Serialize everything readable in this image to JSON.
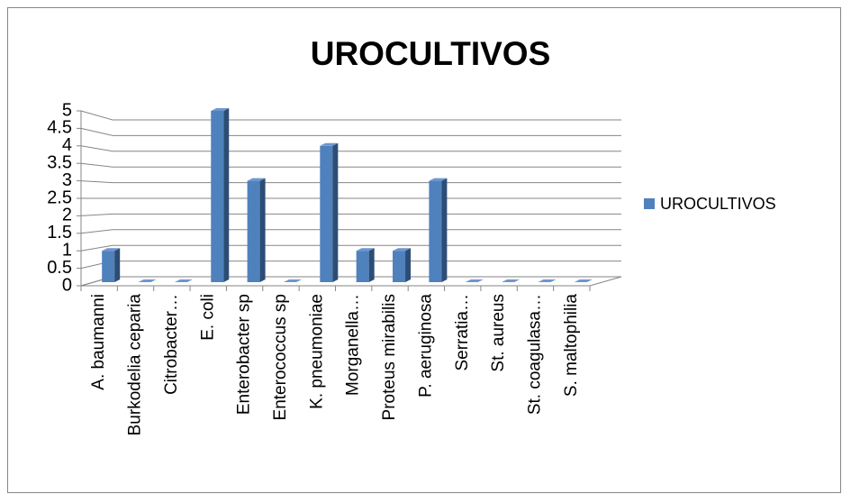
{
  "chart_data": {
    "type": "bar3d",
    "title": "UROCULTIVOS",
    "categories": [
      "A. baumanni",
      "Burkodelia ceparia",
      "Citrobacter…",
      "E. coli",
      "Enterobacter sp",
      "Enterococcus sp",
      "K. pneumoniae",
      "Morganella…",
      "Proteus mirabilis",
      "P. aeruginosa",
      "Serratia…",
      "St. aureus",
      "St. coagulasa…",
      "S. maltophilia"
    ],
    "series": [
      {
        "name": "UROCULTIVOS",
        "color": "#4f81bd",
        "values": [
          1,
          0,
          0,
          5,
          3,
          0,
          4,
          1,
          1,
          3,
          0,
          0,
          0,
          0
        ]
      }
    ],
    "ylim": [
      0,
      5
    ],
    "yticks": [
      0,
      0.5,
      1,
      1.5,
      2,
      2.5,
      3,
      3.5,
      4,
      4.5,
      5
    ],
    "grid": true,
    "legend": "right"
  }
}
